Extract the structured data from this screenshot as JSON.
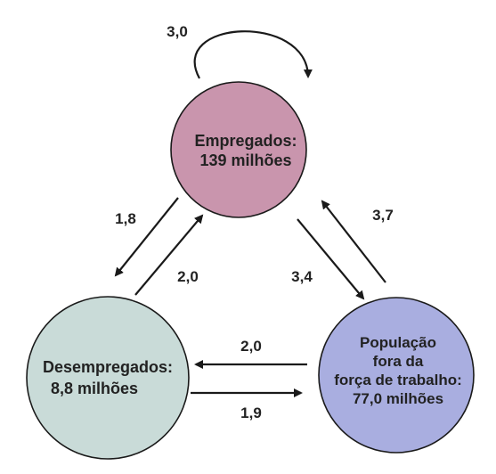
{
  "nodes": {
    "employed": {
      "line1": "Empregados:",
      "line2": "139 milhões",
      "color": "#c995ad"
    },
    "unemployed": {
      "line1": "Desempregados:",
      "line2": "8,8 milhões",
      "color": "#c9dbd8"
    },
    "not_in_labor_force": {
      "line1": "População",
      "line2": "fora da",
      "line3": "força de trabalho:",
      "line4": "77,0 milhões",
      "color": "#a9aee0"
    }
  },
  "flows": {
    "employed_to_employed": "3,0",
    "employed_to_unemployed": "1,8",
    "unemployed_to_employed": "2,0",
    "employed_to_not_in_labor_force": "3,4",
    "not_in_labor_force_to_employed": "3,7",
    "not_in_labor_force_to_unemployed": "2,0",
    "unemployed_to_not_in_labor_force": "1,9"
  }
}
